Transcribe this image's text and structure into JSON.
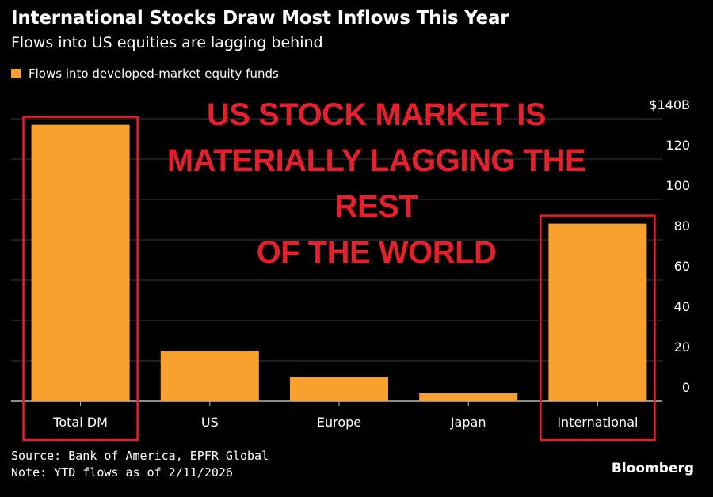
{
  "header": {
    "title": "International Stocks Draw Most Inflows This Year",
    "subtitle": "Flows into US equities are lagging behind"
  },
  "legend": {
    "label": "Flows into developed-market equity funds",
    "color": "#f9a12e"
  },
  "annotation": {
    "lines": [
      "US STOCK MARKET IS",
      "MATERIALLY LAGGING THE REST",
      "OF THE WORLD"
    ],
    "color": "#e3202c",
    "highlighted_categories": [
      "Total DM",
      "International"
    ]
  },
  "footer": {
    "source": "Source: Bank of America, EPFR Global",
    "note": "Note: YTD flows as of 2/11/2026",
    "brand": "Bloomberg"
  },
  "chart_data": {
    "type": "bar",
    "categories": [
      "Total DM",
      "US",
      "Europe",
      "Japan",
      "International"
    ],
    "series": [
      {
        "name": "Flows into developed-market equity funds",
        "values": [
          137,
          25,
          12,
          4,
          88
        ]
      }
    ],
    "y_ticks": [
      "$140B",
      "120",
      "100",
      "80",
      "60",
      "40",
      "20",
      "0"
    ],
    "y_tick_values": [
      140,
      120,
      100,
      80,
      60,
      40,
      20,
      0
    ],
    "ylim": [
      0,
      140
    ],
    "y_axis_side": "right",
    "grid": true,
    "bar_color": "#f9a12e",
    "grid_color": "#3a3a3a"
  }
}
